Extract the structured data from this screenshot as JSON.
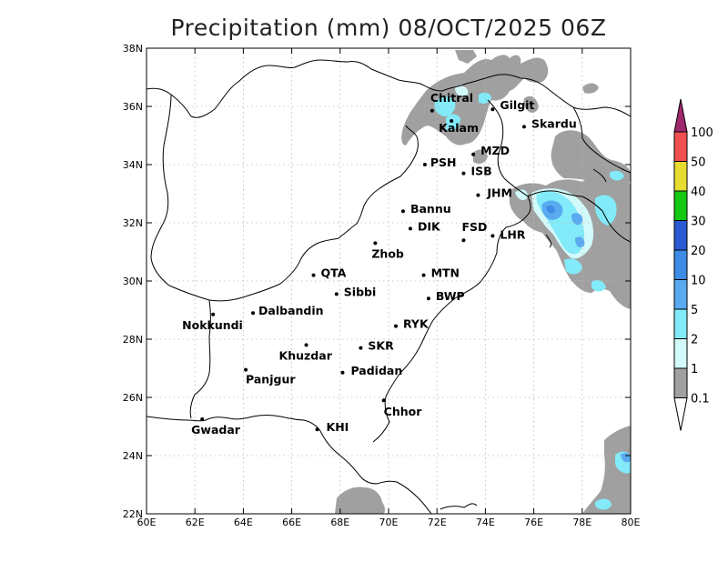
{
  "title": "Precipitation (mm) 08/OCT/2025 06Z",
  "map": {
    "lon_range": [
      60,
      80
    ],
    "lat_range": [
      22,
      38
    ],
    "x_ticks": [
      "60E",
      "62E",
      "64E",
      "66E",
      "68E",
      "70E",
      "72E",
      "74E",
      "76E",
      "78E",
      "80E"
    ],
    "y_ticks": [
      "22N",
      "24N",
      "26N",
      "28N",
      "30N",
      "32N",
      "34N",
      "36N",
      "38N"
    ],
    "grid": true
  },
  "colorbar": {
    "levels": [
      "0.1",
      "1",
      "2",
      "5",
      "10",
      "20",
      "30",
      "40",
      "50",
      "100"
    ],
    "colors": [
      "#a0a0a0",
      "#d2fafa",
      "#82eaf8",
      "#5aaaf0",
      "#3c8ce6",
      "#2a5ad2",
      "#14c814",
      "#e6dc32",
      "#f05050",
      "#a0286e"
    ]
  },
  "cities": [
    {
      "name": "Chitral",
      "lon": 71.8,
      "lat": 35.85
    },
    {
      "name": "Kalam",
      "lon": 72.6,
      "lat": 35.5
    },
    {
      "name": "Gilgit",
      "lon": 74.3,
      "lat": 35.9
    },
    {
      "name": "Skardu",
      "lon": 75.6,
      "lat": 35.3
    },
    {
      "name": "MZD",
      "lon": 73.5,
      "lat": 34.35
    },
    {
      "name": "PSH",
      "lon": 71.5,
      "lat": 34.0
    },
    {
      "name": "ISB",
      "lon": 73.1,
      "lat": 33.7
    },
    {
      "name": "JHM",
      "lon": 73.7,
      "lat": 32.95
    },
    {
      "name": "Bannu",
      "lon": 70.6,
      "lat": 32.4
    },
    {
      "name": "DIK",
      "lon": 70.9,
      "lat": 31.8
    },
    {
      "name": "FSD",
      "lon": 73.1,
      "lat": 31.4
    },
    {
      "name": "LHR",
      "lon": 74.3,
      "lat": 31.55
    },
    {
      "name": "Zhob",
      "lon": 69.45,
      "lat": 31.3
    },
    {
      "name": "QTA",
      "lon": 66.9,
      "lat": 30.2
    },
    {
      "name": "MTN",
      "lon": 71.45,
      "lat": 30.2
    },
    {
      "name": "Sibbi",
      "lon": 67.85,
      "lat": 29.55
    },
    {
      "name": "BWP",
      "lon": 71.65,
      "lat": 29.4
    },
    {
      "name": "Nokkundi",
      "lon": 62.75,
      "lat": 28.85
    },
    {
      "name": "Dalbandin",
      "lon": 64.4,
      "lat": 28.9
    },
    {
      "name": "RYK",
      "lon": 70.3,
      "lat": 28.45
    },
    {
      "name": "Khuzdar",
      "lon": 66.6,
      "lat": 27.8
    },
    {
      "name": "SKR",
      "lon": 68.85,
      "lat": 27.7
    },
    {
      "name": "Panjgur",
      "lon": 64.1,
      "lat": 26.95
    },
    {
      "name": "Padidan",
      "lon": 68.1,
      "lat": 26.85
    },
    {
      "name": "Chhor",
      "lon": 69.8,
      "lat": 25.9
    },
    {
      "name": "KHI",
      "lon": 67.05,
      "lat": 24.9
    },
    {
      "name": "Gwadar",
      "lon": 62.3,
      "lat": 25.25
    }
  ]
}
